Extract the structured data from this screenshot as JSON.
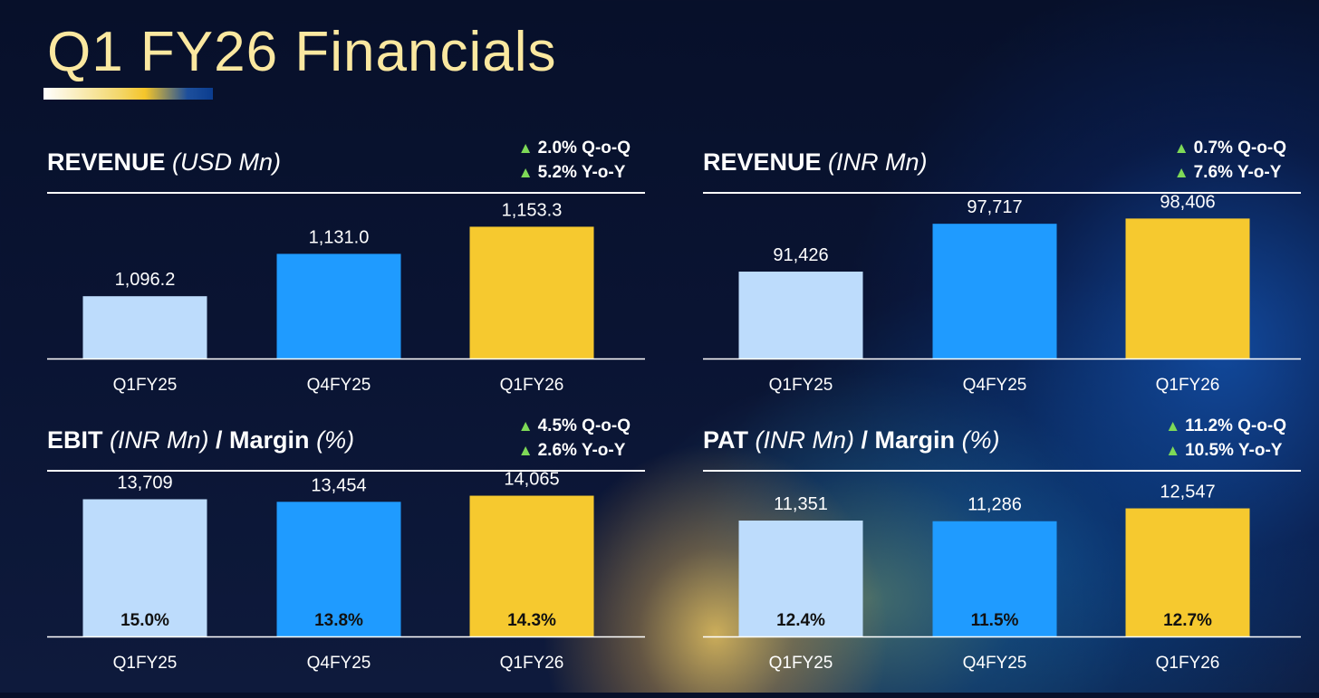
{
  "title": "Q1 FY26 Financials",
  "colors": {
    "q1fy25": "#bddcfc",
    "q4fy25": "#1f9bff",
    "q1fy26": "#f6c92f",
    "growth_arrow": "#7ed957",
    "title": "#fbe8a0"
  },
  "chart_data": [
    {
      "type": "bar",
      "title": "REVENUE",
      "unit": "(USD Mn)",
      "growth": [
        "2.0% Q-o-Q",
        "5.2% Y-o-Y"
      ],
      "categories": [
        "Q1FY25",
        "Q4FY25",
        "Q1FY26"
      ],
      "values": [
        1096.2,
        1131.0,
        1153.3
      ],
      "value_labels": [
        "1,096.2",
        "1,131.0",
        "1,153.3"
      ],
      "ylim": [
        1045,
        1170
      ]
    },
    {
      "type": "bar",
      "title": "REVENUE",
      "unit": "(INR Mn)",
      "growth": [
        "0.7% Q-o-Q",
        "7.6% Y-o-Y"
      ],
      "categories": [
        "Q1FY25",
        "Q4FY25",
        "Q1FY26"
      ],
      "values": [
        91426,
        97717,
        98406
      ],
      "value_labels": [
        "91,426",
        "97,717",
        "98,406"
      ],
      "ylim": [
        80000,
        100000
      ]
    },
    {
      "type": "bar",
      "title": "EBIT",
      "unit": "(INR Mn)",
      "separator": " / ",
      "subtitle": "Margin",
      "subunit": "(%)",
      "growth": [
        "4.5% Q-o-Q",
        "2.6% Y-o-Y"
      ],
      "categories": [
        "Q1FY25",
        "Q4FY25",
        "Q1FY26"
      ],
      "values": [
        13709,
        13454,
        14065
      ],
      "value_labels": [
        "13,709",
        "13,454",
        "14,065"
      ],
      "margins": [
        "15.0%",
        "13.8%",
        "14.3%"
      ],
      "ylim": [
        0,
        15200
      ]
    },
    {
      "type": "bar",
      "title": "PAT",
      "unit": "(INR Mn)",
      "separator": " / ",
      "subtitle": "Margin",
      "subunit": "(%)",
      "growth": [
        "11.2% Q-o-Q",
        "10.5% Y-o-Y"
      ],
      "categories": [
        "Q1FY25",
        "Q4FY25",
        "Q1FY26"
      ],
      "values": [
        11351,
        11286,
        12547
      ],
      "value_labels": [
        "11,351",
        "11,286",
        "12,547"
      ],
      "margins": [
        "12.4%",
        "11.5%",
        "12.7%"
      ],
      "ylim": [
        0,
        14900
      ]
    }
  ]
}
